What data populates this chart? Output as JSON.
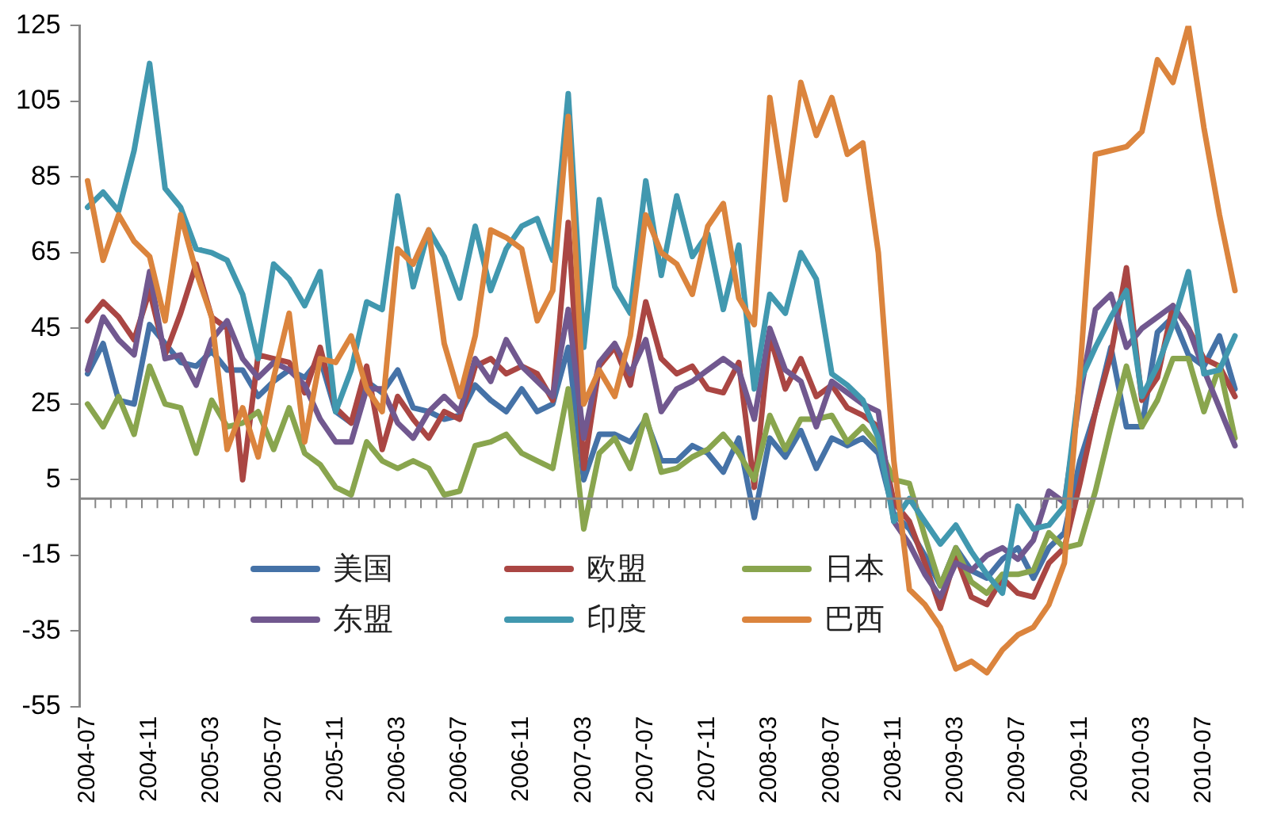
{
  "chart_data": {
    "type": "line",
    "categories": [
      "2004-07",
      null,
      null,
      null,
      "2004-11",
      null,
      null,
      null,
      "2005-03",
      null,
      null,
      null,
      "2005-07",
      null,
      null,
      null,
      "2005-11",
      null,
      null,
      null,
      "2006-03",
      null,
      null,
      null,
      "2006-07",
      null,
      null,
      null,
      "2006-11",
      null,
      null,
      null,
      "2007-03",
      null,
      null,
      null,
      "2007-07",
      null,
      null,
      null,
      "2007-11",
      null,
      null,
      null,
      "2008-03",
      null,
      null,
      null,
      "2008-07",
      null,
      null,
      null,
      "2008-11",
      null,
      null,
      null,
      "2009-03",
      null,
      null,
      null,
      "2009-07",
      null,
      null,
      null,
      "2009-11",
      null,
      null,
      null,
      "2010-03",
      null,
      null,
      null,
      "2010-07",
      null,
      null
    ],
    "series": [
      {
        "name": "美国",
        "color": "#4572a7",
        "values": [
          33,
          41,
          26,
          25,
          46,
          41,
          36,
          35,
          39,
          34,
          34,
          27,
          31,
          34,
          32,
          37,
          23,
          20,
          31,
          28,
          34,
          24,
          23,
          21,
          22,
          30,
          26,
          23,
          29,
          23,
          25,
          40,
          5,
          17,
          17,
          15,
          21,
          10,
          10,
          14,
          12,
          7,
          16,
          -5,
          16,
          11,
          18,
          8,
          16,
          14,
          16,
          12,
          -4,
          -8,
          -15,
          -23,
          -13,
          -19,
          -21,
          -16,
          -13,
          -21,
          -13,
          -9,
          10,
          23,
          40,
          19,
          19,
          44,
          48,
          38,
          35,
          43,
          29
        ]
      },
      {
        "name": "欧盟",
        "color": "#aa4643",
        "values": [
          47,
          52,
          48,
          42,
          55,
          38,
          49,
          62,
          48,
          45,
          5,
          38,
          37,
          36,
          28,
          40,
          24,
          20,
          35,
          13,
          27,
          21,
          16,
          23,
          21,
          35,
          37,
          33,
          35,
          33,
          26,
          73,
          8,
          35,
          40,
          30,
          52,
          37,
          33,
          35,
          29,
          28,
          36,
          3,
          43,
          29,
          37,
          27,
          30,
          24,
          22,
          19,
          -1,
          -6,
          -17,
          -29,
          -15,
          -26,
          -28,
          -21,
          -25,
          -26,
          -17,
          -13,
          4,
          23,
          38,
          61,
          26,
          32,
          51,
          45,
          37,
          35,
          27
        ]
      },
      {
        "name": "日本",
        "color": "#89a54e",
        "values": [
          25,
          19,
          27,
          17,
          35,
          25,
          24,
          12,
          26,
          19,
          20,
          23,
          13,
          24,
          12,
          9,
          3,
          1,
          15,
          10,
          8,
          10,
          8,
          1,
          2,
          14,
          15,
          17,
          12,
          10,
          8,
          29,
          -8,
          12,
          16,
          8,
          22,
          7,
          8,
          11,
          13,
          17,
          12,
          5,
          22,
          13,
          21,
          21,
          22,
          15,
          19,
          14,
          5,
          4,
          -10,
          -23,
          -13,
          -22,
          -25,
          -20,
          -20,
          -19,
          -9,
          -13,
          -12,
          2,
          19,
          35,
          19,
          26,
          37,
          37,
          23,
          35,
          16
        ]
      },
      {
        "name": "东盟",
        "color": "#71588f",
        "values": [
          34,
          48,
          42,
          38,
          60,
          37,
          38,
          30,
          42,
          47,
          37,
          32,
          36,
          34,
          30,
          21,
          15,
          15,
          29,
          29,
          20,
          16,
          23,
          27,
          23,
          37,
          31,
          42,
          35,
          31,
          27,
          50,
          16,
          36,
          41,
          33,
          42,
          23,
          29,
          31,
          34,
          37,
          34,
          21,
          45,
          34,
          31,
          19,
          31,
          28,
          25,
          23,
          -6,
          -12,
          -20,
          -26,
          -17,
          -19,
          -15,
          -13,
          -16,
          -11,
          2,
          -1,
          27,
          50,
          54,
          40,
          45,
          48,
          51,
          45,
          34,
          24,
          14
        ]
      },
      {
        "name": "印度",
        "color": "#4198af",
        "values": [
          77,
          81,
          76,
          92,
          115,
          82,
          77,
          66,
          65,
          63,
          54,
          37,
          62,
          58,
          51,
          60,
          23,
          34,
          52,
          50,
          80,
          56,
          71,
          64,
          53,
          72,
          55,
          66,
          72,
          74,
          63,
          107,
          40,
          79,
          56,
          49,
          84,
          59,
          80,
          64,
          70,
          50,
          67,
          29,
          54,
          49,
          65,
          58,
          33,
          30,
          26,
          16,
          -6,
          0,
          -6,
          -12,
          -7,
          -14,
          -20,
          -25,
          -2,
          -8,
          -7,
          -2,
          31,
          40,
          48,
          55,
          27,
          35,
          46,
          60,
          33,
          34,
          43
        ]
      },
      {
        "name": "巴西",
        "color": "#db843d",
        "values": [
          84,
          63,
          75,
          68,
          64,
          47,
          75,
          60,
          48,
          13,
          24,
          11,
          32,
          49,
          15,
          37,
          36,
          43,
          29,
          23,
          66,
          62,
          71,
          41,
          27,
          43,
          71,
          69,
          66,
          47,
          55,
          101,
          25,
          34,
          27,
          43,
          75,
          65,
          62,
          54,
          72,
          78,
          53,
          46,
          106,
          79,
          110,
          96,
          106,
          91,
          94,
          65,
          10,
          -24,
          -28,
          -34,
          -45,
          -43,
          -46,
          -40,
          -36,
          -34,
          -28,
          -17,
          33,
          91,
          92,
          93,
          97,
          116,
          110,
          125,
          98,
          75,
          55
        ]
      }
    ],
    "ylim": [
      -55,
      125
    ],
    "yticks": [
      -55,
      -35,
      -15,
      5,
      25,
      45,
      65,
      85,
      105,
      125
    ],
    "grid": false,
    "legend": "bottom",
    "marker": "none"
  }
}
